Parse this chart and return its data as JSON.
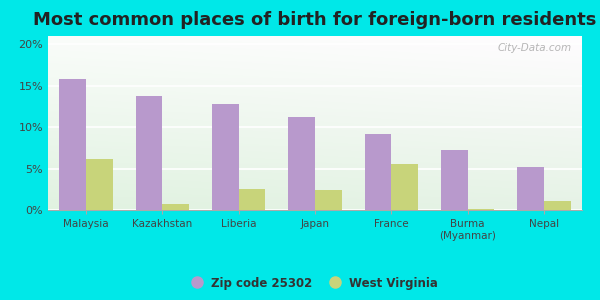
{
  "title": "Most common places of birth for foreign-born residents",
  "categories": [
    "Malaysia",
    "Kazakhstan",
    "Liberia",
    "Japan",
    "France",
    "Burma\n(Myanmar)",
    "Nepal"
  ],
  "zip_values": [
    15.8,
    13.8,
    12.8,
    11.2,
    9.2,
    7.3,
    5.2
  ],
  "wv_values": [
    6.2,
    0.7,
    2.5,
    2.4,
    5.5,
    0.1,
    1.1
  ],
  "zip_color": "#b899cc",
  "wv_color": "#c8d47a",
  "legend_zip": "Zip code 25302",
  "legend_wv": "West Virginia",
  "ylim": [
    0,
    21
  ],
  "yticks": [
    0,
    5,
    10,
    15,
    20
  ],
  "ytick_labels": [
    "0%",
    "5%",
    "10%",
    "15%",
    "20%"
  ],
  "bg_outer": "#00e8e8",
  "title_fontsize": 13,
  "bar_width": 0.35,
  "watermark": "City-Data.com"
}
